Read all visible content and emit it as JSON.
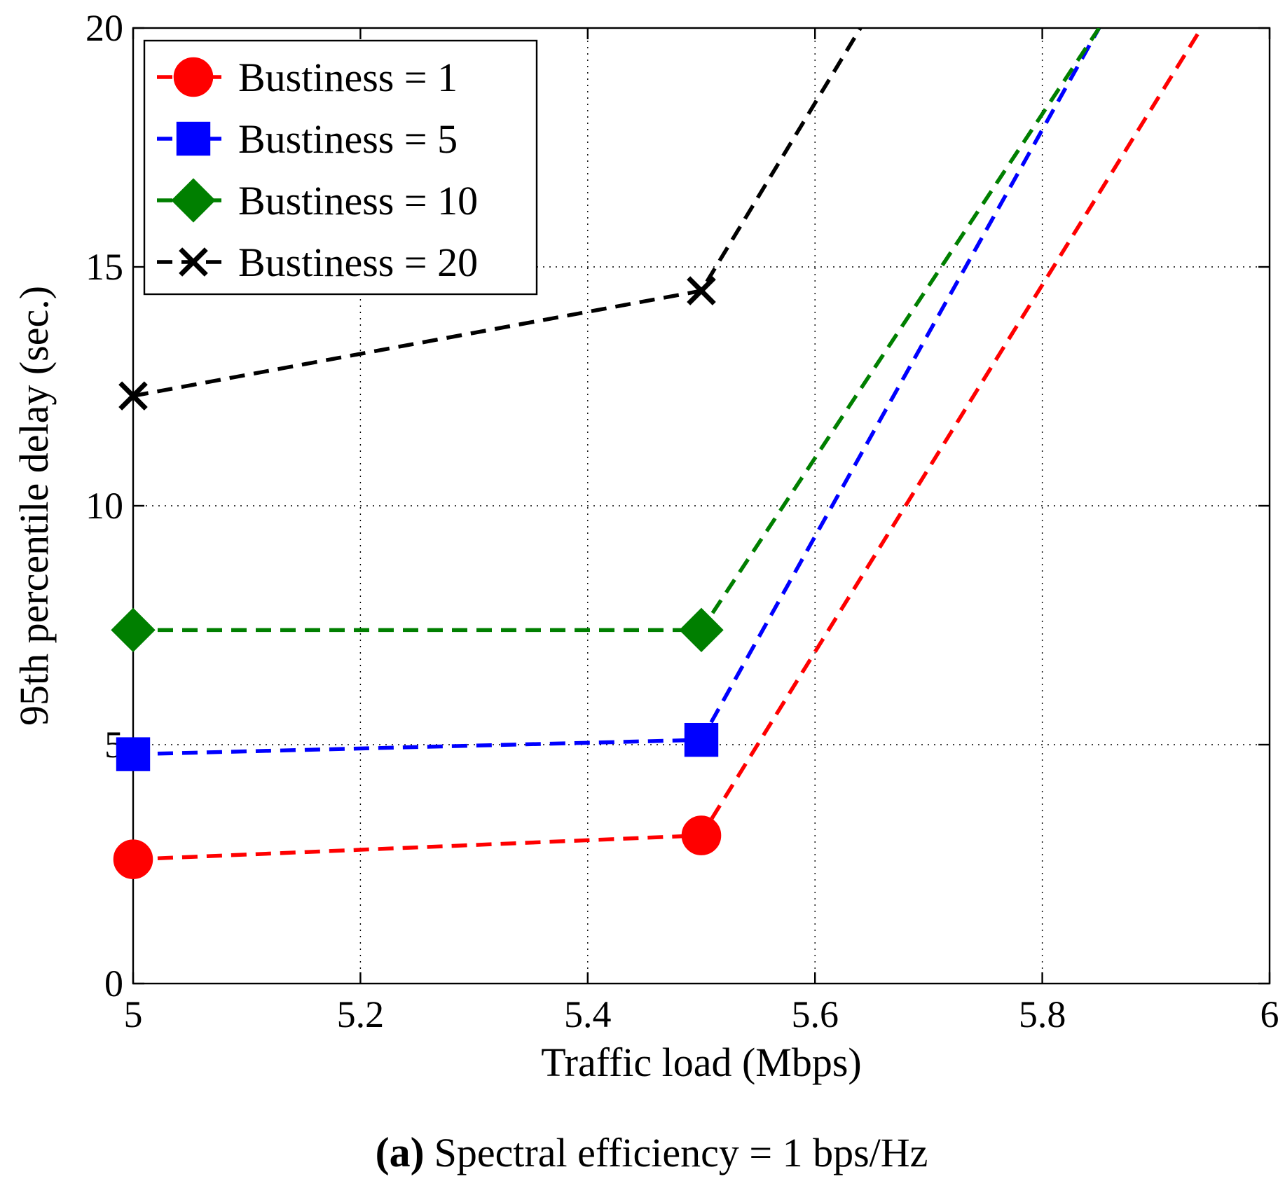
{
  "chart_data": {
    "type": "line",
    "xlabel": "Traffic load (Mbps)",
    "ylabel": "95th percentile delay (sec.)",
    "xlim": [
      5,
      6
    ],
    "ylim": [
      0,
      20
    ],
    "xticks": [
      5,
      5.2,
      5.4,
      5.6,
      5.8,
      6
    ],
    "xtick_labels": [
      "5",
      "5.2",
      "5.4",
      "5.6",
      "5.8",
      "6"
    ],
    "yticks": [
      0,
      5,
      10,
      15,
      20
    ],
    "ytick_labels": [
      "0",
      "5",
      "10",
      "15",
      "20"
    ],
    "grid": true,
    "legend_position": "top-left",
    "series": [
      {
        "name": "Bustiness = 1",
        "color": "#ff0000",
        "marker": "circle",
        "x": [
          5,
          5.5,
          5.94
        ],
        "y": [
          2.6,
          3.1,
          20.0
        ]
      },
      {
        "name": "Bustiness = 5",
        "color": "#0000ff",
        "marker": "square",
        "x": [
          5,
          5.5,
          5.85
        ],
        "y": [
          4.8,
          5.1,
          20.0
        ]
      },
      {
        "name": "Bustiness = 10",
        "color": "#007f00",
        "marker": "diamond",
        "x": [
          5,
          5.5,
          5.85
        ],
        "y": [
          7.4,
          7.4,
          20.0
        ]
      },
      {
        "name": "Bustiness = 20",
        "color": "#000000",
        "marker": "x",
        "x": [
          5,
          5.5,
          5.64
        ],
        "y": [
          12.3,
          14.5,
          20.0
        ]
      }
    ]
  },
  "caption": {
    "letter": "(a)",
    "text": "Spectral efficiency = 1 bps/Hz"
  }
}
